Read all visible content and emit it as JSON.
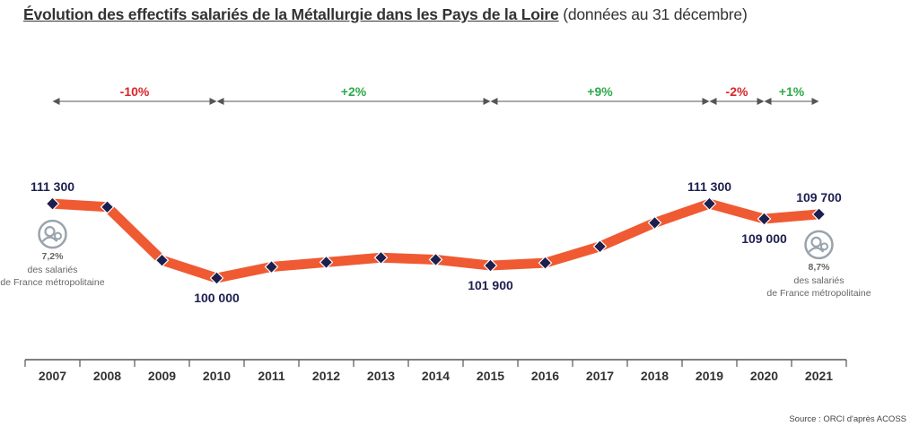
{
  "title": "Évolution des effectifs salariés de la Métallurgie dans les Pays de la Loire",
  "subtitle": "(données au 31 décembre)",
  "source": "Source : ORCI d'après ACOSS",
  "chart_data": {
    "type": "line",
    "title": "Évolution des effectifs salariés de la Métallurgie dans les Pays de la Loire",
    "subtitle": "(données au 31 décembre)",
    "categories": [
      "2007",
      "2008",
      "2009",
      "2010",
      "2011",
      "2012",
      "2013",
      "2014",
      "2015",
      "2016",
      "2017",
      "2018",
      "2019",
      "2020",
      "2021"
    ],
    "series": [
      {
        "values": [
          111300,
          110800,
          102700,
          100000,
          101700,
          102400,
          103100,
          102800,
          101900,
          102300,
          104800,
          108400,
          111300,
          109000,
          109700
        ]
      }
    ],
    "point_labels": [
      {
        "index": 0,
        "text": "111 300",
        "pos": "above"
      },
      {
        "index": 3,
        "text": "100 000",
        "pos": "below"
      },
      {
        "index": 8,
        "text": "101 900",
        "pos": "below"
      },
      {
        "index": 12,
        "text": "111 300",
        "pos": "above"
      },
      {
        "index": 13,
        "text": "109 000",
        "pos": "below"
      },
      {
        "index": 14,
        "text": "109 700",
        "pos": "above"
      }
    ],
    "periods": [
      {
        "from": 0,
        "to": 3,
        "label": "-10%",
        "color": "#d9252a"
      },
      {
        "from": 3,
        "to": 8,
        "label": "+2%",
        "color": "#2eaa4a"
      },
      {
        "from": 8,
        "to": 12,
        "label": "+9%",
        "color": "#2eaa4a"
      },
      {
        "from": 12,
        "to": 13,
        "label": "-2%",
        "color": "#d9252a"
      },
      {
        "from": 13,
        "to": 14,
        "label": "+1%",
        "color": "#2eaa4a"
      }
    ],
    "annotations": [
      {
        "index": 0,
        "icon": "user-group-icon",
        "percent": "7,2%",
        "line1": "des salariés",
        "line2": "de France métropolitaine"
      },
      {
        "index": 14,
        "icon": "user-group-icon",
        "percent": "8,7%",
        "line1": "des salariés",
        "line2": "de France métropolitaine"
      }
    ],
    "ylim": [
      85000,
      130000
    ],
    "grid": false,
    "colors": {
      "line": "#ef5a33",
      "marker": "#1d1f4f",
      "axis": "#555555",
      "arrow": "#555555",
      "label": "#1d1f4f",
      "icon": "#9aa3ad",
      "note": "#666666"
    }
  }
}
